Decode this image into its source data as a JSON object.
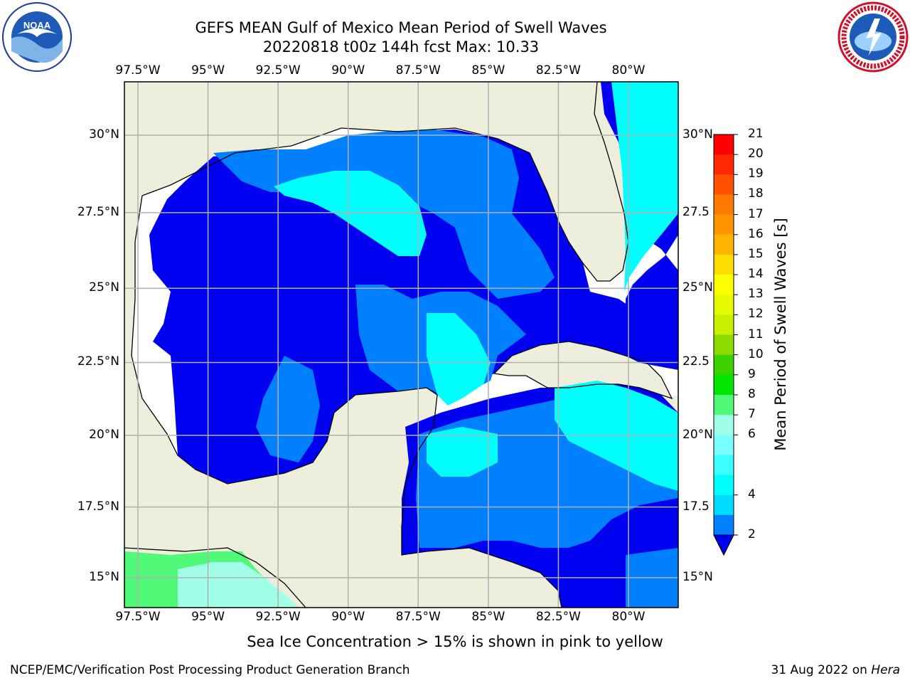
{
  "title": {
    "line1": "GEFS MEAN Gulf of Mexico Mean Period of Swell Waves",
    "line2": "20220818 t00z 144h fcst   Max: 10.33"
  },
  "logos": {
    "left": "NOAA",
    "left_ring_text": "NATIONAL OCEANIC AND ATMOSPHERIC ADMINISTRATION · U.S. DEPARTMENT OF COMMERCE",
    "right_ring_text": "NATIONAL WEATHER SERVICE"
  },
  "map": {
    "lon_labels": [
      "97.5°W",
      "95°W",
      "92.5°W",
      "90°W",
      "87.5°W",
      "85°W",
      "82.5°W",
      "80°W"
    ],
    "lat_labels_left": [
      "30°N",
      "27.5°N",
      "25°N",
      "22.5°N",
      "20°N",
      "17.5°N",
      "15°N"
    ],
    "lat_labels_right": [
      "30°N",
      "27.5",
      "25°N",
      "22.5",
      "20°N",
      "17.5",
      "15°N"
    ],
    "land_color": "#eeeedd",
    "grid_color": "#b0b0b0"
  },
  "colorbar": {
    "label": "Mean Period of Swell Waves [s]",
    "ticks": [
      "21",
      "20",
      "19",
      "18",
      "17",
      "16",
      "15",
      "14",
      "13",
      "12",
      "11",
      "10",
      "9",
      "8",
      "7",
      "6",
      "4",
      "2"
    ],
    "colors_top_to_bottom": [
      "#ff0000",
      "#ff2800",
      "#ff5000",
      "#ff7800",
      "#ff9600",
      "#ffb400",
      "#ffdc00",
      "#ffff00",
      "#e6fa00",
      "#c8f000",
      "#8cdc00",
      "#3cd200",
      "#00e600",
      "#50fa78",
      "#a0ffe6",
      "#78ffff",
      "#3cffff",
      "#00ffff",
      "#00dcff",
      "#0080ff"
    ],
    "extend_color": "#0000f0"
  },
  "note": "Sea Ice Concentration > 15% is shown in pink to yellow",
  "footer": {
    "left": "NCEP/EMC/Verification Post Processing Product Generation Branch",
    "right_date": "31 Aug 2022 on ",
    "right_host": "Hera"
  }
}
